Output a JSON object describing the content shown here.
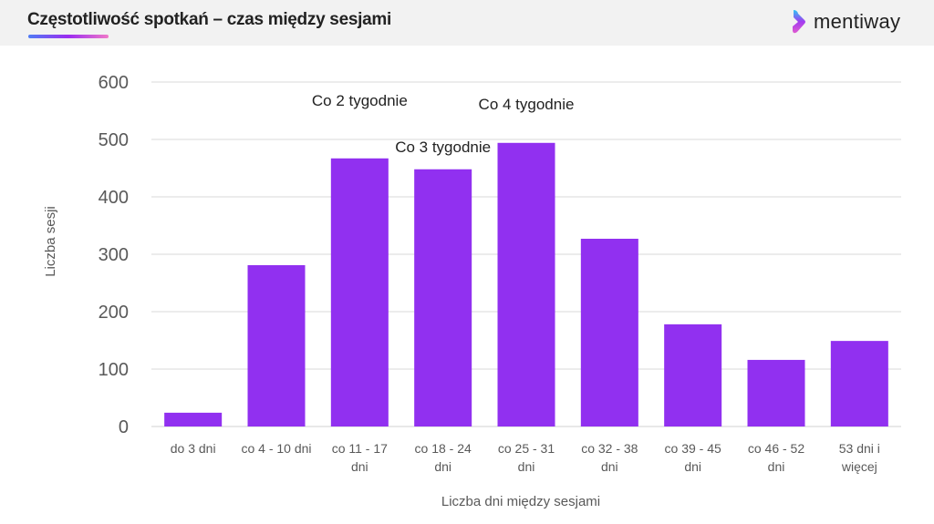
{
  "header": {
    "title": "Częstotliwość spotkań – czas między sesjami",
    "logo": "mentiway"
  },
  "colors": {
    "bar": "#9130f0",
    "grid": "#d9d9d9"
  },
  "chart_data": {
    "type": "bar",
    "title": "Częstotliwość spotkań – czas między sesjami",
    "xlabel": "Liczba dni między sesjami",
    "ylabel": "Liczba sesji",
    "ylim": [
      0,
      600
    ],
    "yticks": [
      0,
      100,
      200,
      300,
      400,
      500,
      600
    ],
    "grid": true,
    "categories": [
      [
        "do 3 dni"
      ],
      [
        "co 4 - 10 dni"
      ],
      [
        "co 11 - 17",
        "dni"
      ],
      [
        "co 18 - 24",
        "dni"
      ],
      [
        "co 25 - 31",
        "dni"
      ],
      [
        "co 32 - 38",
        "dni"
      ],
      [
        "co 39 - 45",
        "dni"
      ],
      [
        "co 46 - 52",
        "dni"
      ],
      [
        "53 dni i",
        "więcej"
      ]
    ],
    "values": [
      24,
      281,
      467,
      448,
      494,
      327,
      178,
      116,
      149
    ],
    "annotations": [
      {
        "category_index": 2,
        "text": "Co 2 tygodnie"
      },
      {
        "category_index": 3,
        "text": "Co 3 tygodnie"
      },
      {
        "category_index": 4,
        "text": "Co 4 tygodnie"
      }
    ]
  }
}
